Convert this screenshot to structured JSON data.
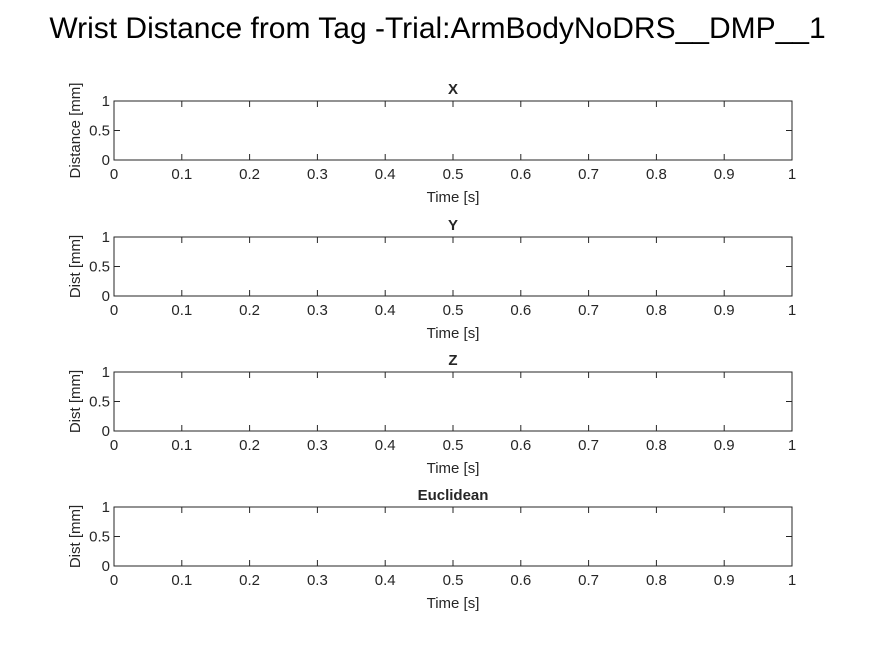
{
  "figure": {
    "title": "Wrist Distance from Tag -Trial:ArmBodyNoDRS__DMP__1",
    "background": "#ffffff",
    "axis_color": "#262626"
  },
  "chart_data": [
    {
      "type": "line",
      "title": "X",
      "xlabel": "Time [s]",
      "ylabel": "Distance [mm]",
      "xlim": [
        0,
        1
      ],
      "ylim": [
        0,
        1
      ],
      "xticks": [
        "0",
        "0.1",
        "0.2",
        "0.3",
        "0.4",
        "0.5",
        "0.6",
        "0.7",
        "0.8",
        "0.9",
        "1"
      ],
      "yticks": [
        "0",
        "0.5",
        "1"
      ],
      "grid": false,
      "series": []
    },
    {
      "type": "line",
      "title": "Y",
      "xlabel": "Time [s]",
      "ylabel": "Dist [mm]",
      "xlim": [
        0,
        1
      ],
      "ylim": [
        0,
        1
      ],
      "xticks": [
        "0",
        "0.1",
        "0.2",
        "0.3",
        "0.4",
        "0.5",
        "0.6",
        "0.7",
        "0.8",
        "0.9",
        "1"
      ],
      "yticks": [
        "0",
        "0.5",
        "1"
      ],
      "grid": false,
      "series": []
    },
    {
      "type": "line",
      "title": "Z",
      "xlabel": "Time [s]",
      "ylabel": "Dist [mm]",
      "xlim": [
        0,
        1
      ],
      "ylim": [
        0,
        1
      ],
      "xticks": [
        "0",
        "0.1",
        "0.2",
        "0.3",
        "0.4",
        "0.5",
        "0.6",
        "0.7",
        "0.8",
        "0.9",
        "1"
      ],
      "yticks": [
        "0",
        "0.5",
        "1"
      ],
      "grid": false,
      "series": []
    },
    {
      "type": "line",
      "title": "Euclidean",
      "xlabel": "Time [s]",
      "ylabel": "Dist [mm]",
      "xlim": [
        0,
        1
      ],
      "ylim": [
        0,
        1
      ],
      "xticks": [
        "0",
        "0.1",
        "0.2",
        "0.3",
        "0.4",
        "0.5",
        "0.6",
        "0.7",
        "0.8",
        "0.9",
        "1"
      ],
      "yticks": [
        "0",
        "0.5",
        "1"
      ],
      "grid": false,
      "series": []
    }
  ]
}
